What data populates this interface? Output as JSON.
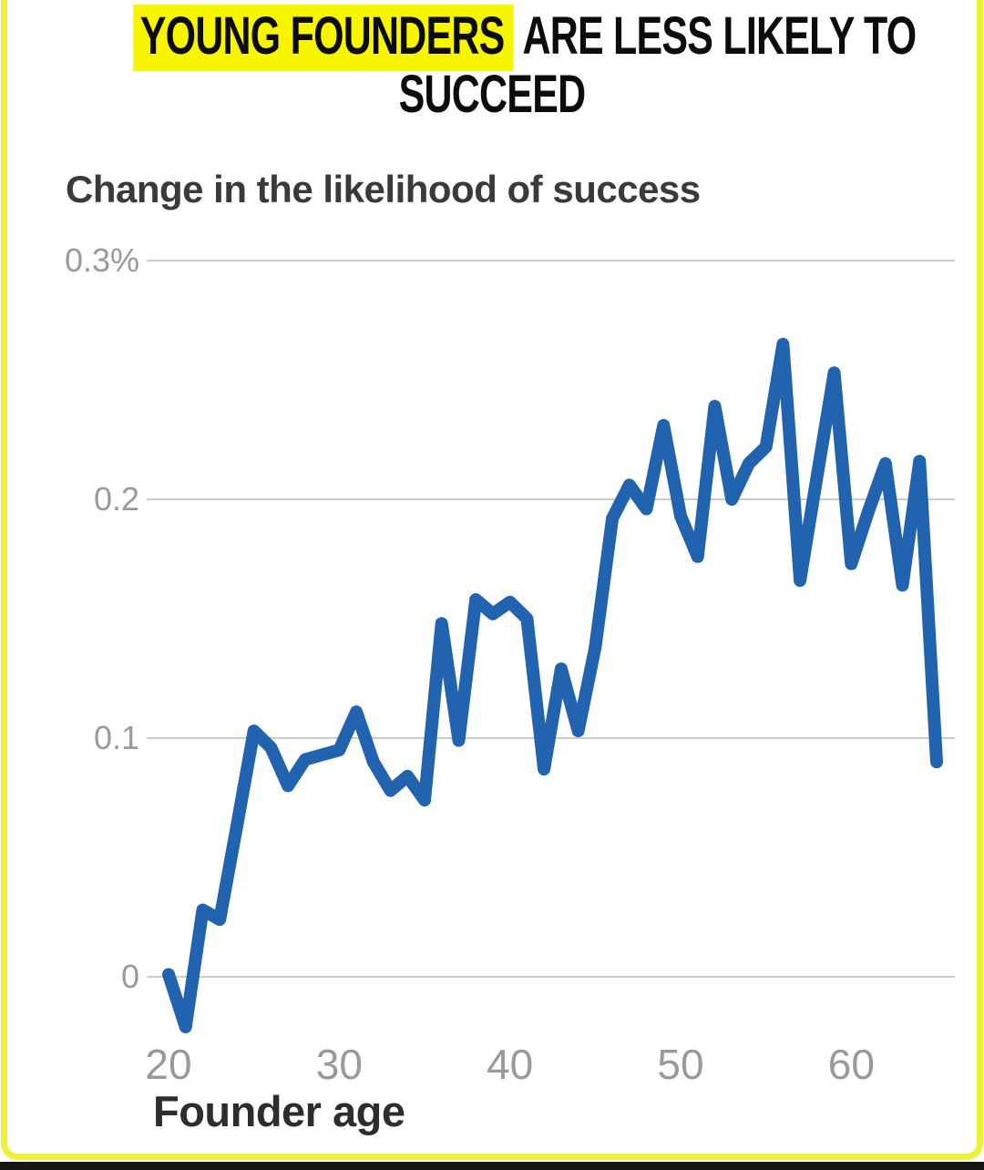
{
  "title": {
    "line1_highlight": "YOUNG FOUNDERS",
    "line1_rest": " ARE LESS LIKELY TO",
    "line2": "SUCCEED",
    "highlight_color": "#f8f500",
    "text_color": "#0c0c0c"
  },
  "subtitle": "Change in the likelihood of success",
  "frame": {
    "border_color": "#edf138",
    "bottom_bar_color": "#151515",
    "background": "#ffffff"
  },
  "chart_data": {
    "type": "line",
    "title": "YOUNG FOUNDERS ARE LESS LIKELY TO SUCCEED",
    "subtitle": "Change in the likelihood of success",
    "xlabel": "Founder age",
    "ylabel": "",
    "grid": "horizontal-only",
    "gridline_color": "#cbcbcb",
    "axis_label_color": "#9a9a9a",
    "xlim": [
      18.7,
      66.2
    ],
    "ylim": [
      -0.045,
      0.305
    ],
    "xticks": [
      {
        "value": 20,
        "label": "20"
      },
      {
        "value": 30,
        "label": "30"
      },
      {
        "value": 40,
        "label": "40"
      },
      {
        "value": 50,
        "label": "50"
      },
      {
        "value": 60,
        "label": "60"
      }
    ],
    "yticks": [
      {
        "value": 0.3,
        "label": "0.3%"
      },
      {
        "value": 0.2,
        "label": "0.2"
      },
      {
        "value": 0.1,
        "label": "0.1"
      },
      {
        "value": 0.0,
        "label": "0"
      }
    ],
    "series": [
      {
        "name": "Change in the likelihood of success by founder age",
        "color": "#2263af",
        "points": [
          [
            20,
            0.001
          ],
          [
            21,
            -0.021
          ],
          [
            22,
            0.028
          ],
          [
            23,
            0.024
          ],
          [
            24,
            0.063
          ],
          [
            25,
            0.103
          ],
          [
            26,
            0.096
          ],
          [
            27,
            0.08
          ],
          [
            28,
            0.091
          ],
          [
            29,
            0.093
          ],
          [
            30,
            0.095
          ],
          [
            31,
            0.111
          ],
          [
            32,
            0.09
          ],
          [
            33,
            0.078
          ],
          [
            34,
            0.084
          ],
          [
            35,
            0.074
          ],
          [
            36,
            0.148
          ],
          [
            37,
            0.099
          ],
          [
            38,
            0.158
          ],
          [
            39,
            0.152
          ],
          [
            40,
            0.157
          ],
          [
            41,
            0.15
          ],
          [
            42,
            0.087
          ],
          [
            43,
            0.129
          ],
          [
            44,
            0.103
          ],
          [
            45,
            0.138
          ],
          [
            46,
            0.192
          ],
          [
            47,
            0.206
          ],
          [
            48,
            0.196
          ],
          [
            49,
            0.231
          ],
          [
            50,
            0.193
          ],
          [
            51,
            0.176
          ],
          [
            52,
            0.239
          ],
          [
            53,
            0.2
          ],
          [
            54,
            0.215
          ],
          [
            55,
            0.222
          ],
          [
            56,
            0.265
          ],
          [
            57,
            0.166
          ],
          [
            58,
            0.21
          ],
          [
            59,
            0.253
          ],
          [
            60,
            0.173
          ],
          [
            61,
            0.195
          ],
          [
            62,
            0.215
          ],
          [
            63,
            0.164
          ],
          [
            64,
            0.216
          ],
          [
            65,
            0.09
          ]
        ]
      }
    ]
  }
}
